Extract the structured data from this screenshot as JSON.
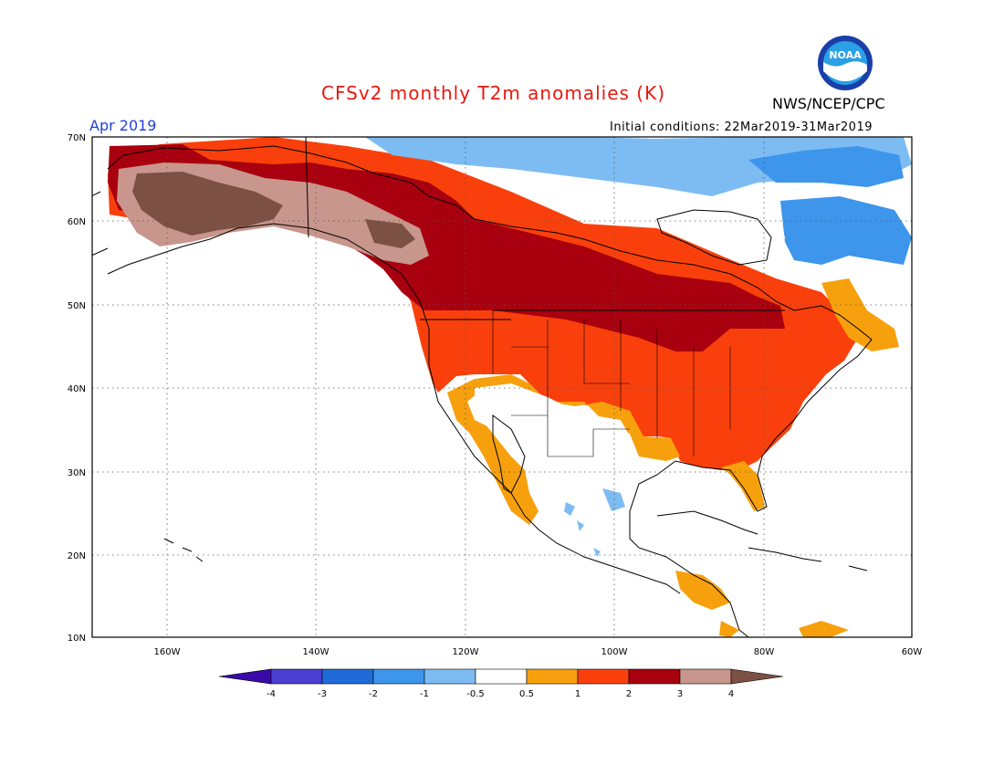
{
  "header": {
    "title": "CFSv2 monthly T2m anomalies (K)",
    "org": "NWS/NCEP/CPC",
    "period": "Apr 2019",
    "init": "Initial conditions: 22Mar2019-31Mar2019",
    "logo_text": "NOAA"
  },
  "axes": {
    "lat": [
      "70N",
      "60N",
      "50N",
      "40N",
      "30N",
      "20N",
      "10N"
    ],
    "lon": [
      "160W",
      "140W",
      "120W",
      "100W",
      "80W",
      "60W"
    ]
  },
  "colors": {
    "title": "#e8190f",
    "period": "#1f3fe0",
    "cold4": "#3a0aa8",
    "cold3": "#4a3fd0",
    "cold2": "#1f6bd8",
    "cold1": "#3d95ec",
    "cold05": "#7dbcf2",
    "neutral": "#ffffff",
    "warm05": "#f7a00d",
    "warm1": "#f9400c",
    "warm2": "#a8000e",
    "warm3": "#c8968c",
    "warm4": "#7d5044",
    "coast": "#000000"
  },
  "legend": {
    "labels": [
      "-4",
      "-3",
      "-2",
      "-1",
      "-0.5",
      "0.5",
      "1",
      "2",
      "3",
      "4"
    ]
  }
}
